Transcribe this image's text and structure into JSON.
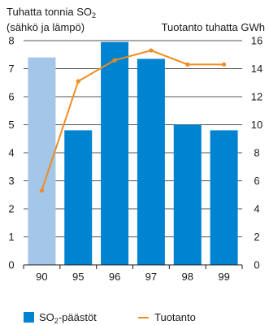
{
  "chart_data": {
    "type": "bar+line",
    "categories": [
      "90",
      "95",
      "96",
      "97",
      "98",
      "99"
    ],
    "left_axis": {
      "label_line1": "Tuhatta tonnia SO",
      "label_sub": "2",
      "label_line2": "(sähkö ja lämpö)",
      "min": 0,
      "max": 8,
      "ticks": [
        "0",
        "1",
        "2",
        "3",
        "4",
        "5",
        "6",
        "7",
        "8"
      ]
    },
    "right_axis": {
      "label": "Tuotanto tuhatta GWh",
      "min": 0,
      "max": 16,
      "ticks": [
        "0",
        "2",
        "4",
        "6",
        "8",
        "10",
        "12",
        "14",
        "16"
      ]
    },
    "series": [
      {
        "name": "SO₂-päästöt",
        "type": "bar",
        "axis": "left",
        "values": [
          7.4,
          4.8,
          7.95,
          7.35,
          5.0,
          4.8
        ],
        "color": "#0083d1",
        "first_bar_color": "#a3c6e9"
      },
      {
        "name": "Tuotanto",
        "type": "line",
        "axis": "right",
        "values": [
          5.3,
          13.1,
          14.6,
          15.3,
          14.3,
          14.3
        ],
        "color": "#f08c1e"
      }
    ],
    "grid": true,
    "legend_position": "bottom"
  },
  "legend": {
    "bar_label_prefix": "SO",
    "bar_label_sub": "2",
    "bar_label_suffix": "-päästöt",
    "line_label": "Tuotanto"
  }
}
